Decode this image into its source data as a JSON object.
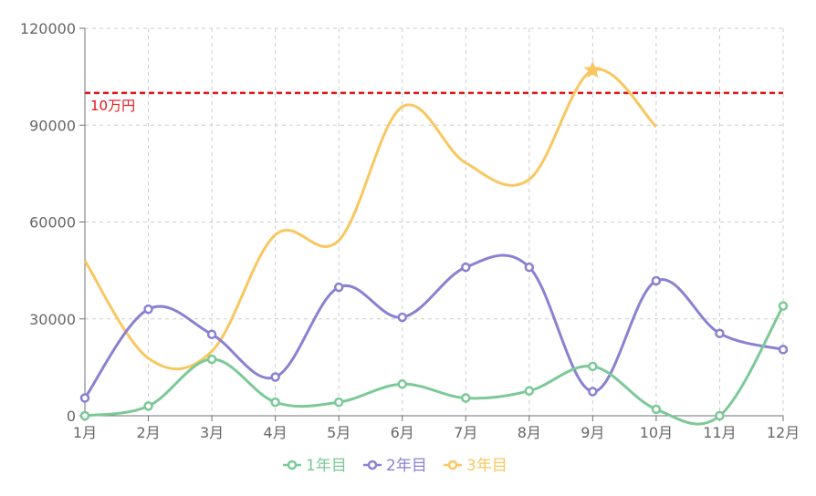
{
  "chart_data": {
    "type": "line",
    "smooth": true,
    "categories": [
      "1月",
      "2月",
      "3月",
      "4月",
      "5月",
      "6月",
      "7月",
      "8月",
      "9月",
      "10月",
      "11月",
      "12月"
    ],
    "y_ticks": [
      "0",
      "30000",
      "60000",
      "90000",
      "120000"
    ],
    "ylim": [
      0,
      120000
    ],
    "grid": true,
    "legend_position": "bottom-center",
    "series": [
      {
        "name": "1年目",
        "color": "#7bc996",
        "marker": "circle",
        "values": [
          0,
          3000,
          17500,
          4200,
          4200,
          9800,
          5500,
          7700,
          15300,
          2000,
          0,
          34000
        ]
      },
      {
        "name": "2年目",
        "color": "#8a81d1",
        "marker": "circle",
        "values": [
          5500,
          33000,
          25200,
          12000,
          39800,
          30500,
          46000,
          46000,
          7500,
          41800,
          25500,
          20500
        ]
      },
      {
        "name": "3年目",
        "color": "#f9c760",
        "marker": "none",
        "values": [
          48000,
          17800,
          20000,
          56000,
          54300,
          95700,
          78300,
          73200,
          107000,
          89500,
          null,
          null
        ],
        "highlight": {
          "index": 8,
          "value": 107000,
          "marker": "star"
        }
      }
    ],
    "reference_line": {
      "value": 100000,
      "label": "10万円",
      "color": "#e8141b",
      "style": "dashed"
    },
    "axis_color": "#6e7079",
    "grid_color": "#cccccc"
  }
}
